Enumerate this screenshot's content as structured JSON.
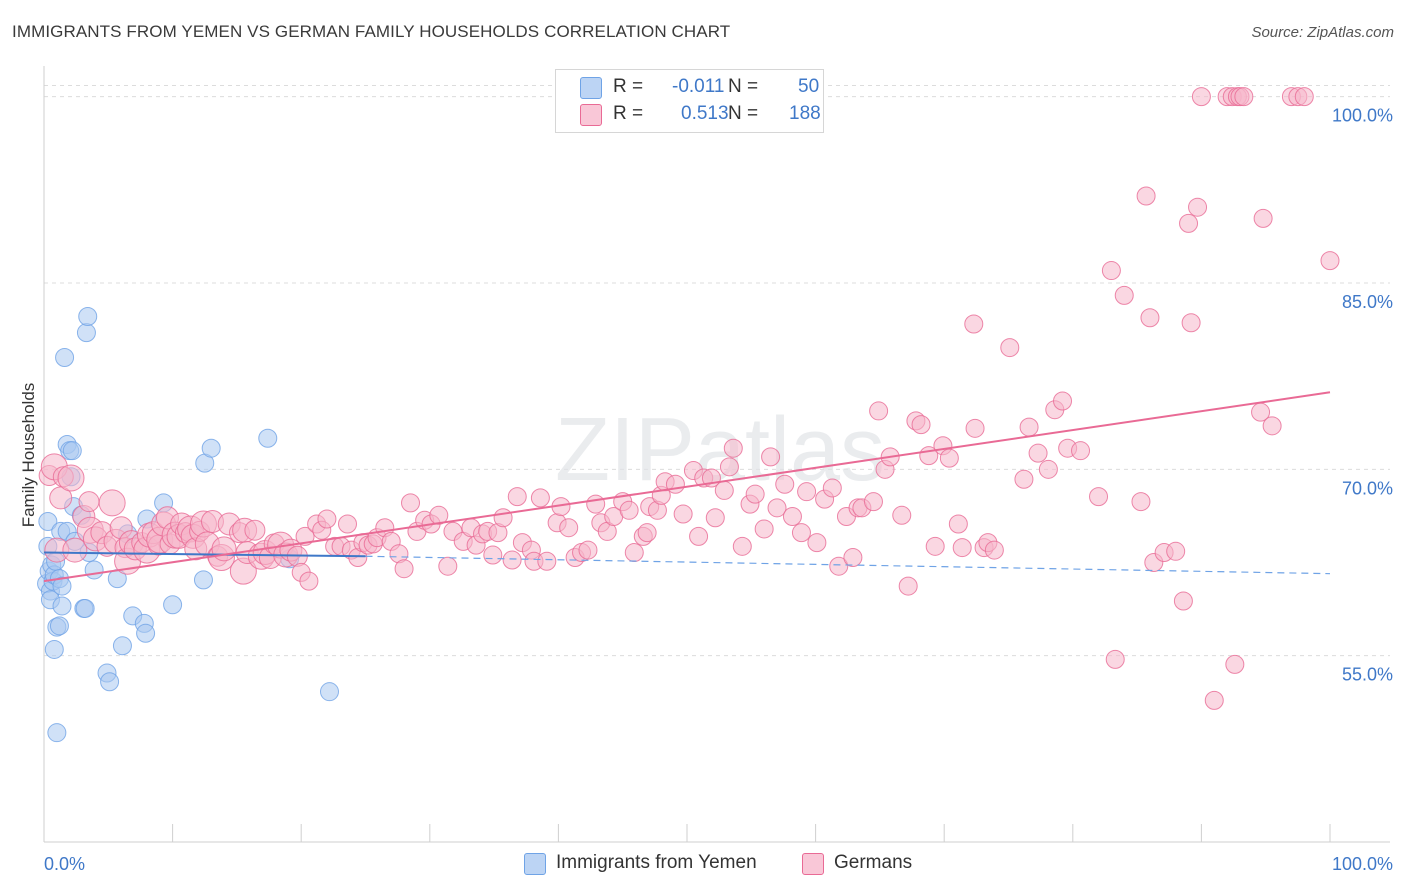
{
  "title": "IMMIGRANTS FROM YEMEN VS GERMAN FAMILY HOUSEHOLDS CORRELATION CHART",
  "source": "Source: ZipAtlas.com",
  "watermark": "ZIPatlas",
  "legend": {
    "r_label": "R =",
    "n_label": "N =",
    "rows": [
      {
        "r": "-0.011",
        "n": "50",
        "color": "#a9c8f0"
      },
      {
        "r": "0.513",
        "n": "188",
        "color": "#f6b6ca"
      }
    ]
  },
  "bottom_legend": [
    {
      "label": "Immigrants from Yemen",
      "color": "#a9c8f0"
    },
    {
      "label": "Germans",
      "color": "#f6b6ca"
    }
  ],
  "chart_data": {
    "type": "scatter",
    "title": "IMMIGRANTS FROM YEMEN VS GERMAN FAMILY HOUSEHOLDS CORRELATION CHART",
    "xlabel": "",
    "ylabel": "Family Households",
    "x_tick_labels": [
      "0.0%",
      "100.0%"
    ],
    "y_tick_labels": [
      "55.0%",
      "70.0%",
      "85.0%",
      "100.0%"
    ],
    "y_ticks": [
      55,
      70,
      85,
      100
    ],
    "xlim": [
      0,
      100
    ],
    "ylim": [
      40,
      101.5
    ],
    "grid": true,
    "legend_placement": "top-center",
    "series": [
      {
        "name": "Immigrants from Yemen",
        "color": "#6fa3e6",
        "fill": "#a9c8f0",
        "R": -0.011,
        "N": 50,
        "trend": {
          "x": [
            0,
            25
          ],
          "y": [
            63.3,
            63.0
          ],
          "dashed_to": [
            100,
            61.6
          ]
        },
        "points": [
          [
            0.2,
            60.8
          ],
          [
            0.3,
            65.8
          ],
          [
            0.3,
            63.8
          ],
          [
            0.4,
            61.8
          ],
          [
            0.5,
            60.2
          ],
          [
            0.5,
            59.5
          ],
          [
            0.6,
            62.3
          ],
          [
            0.7,
            61.0
          ],
          [
            0.8,
            61.5
          ],
          [
            0.8,
            55.5
          ],
          [
            0.9,
            62.6
          ],
          [
            1.0,
            57.3
          ],
          [
            1.0,
            48.8
          ],
          [
            1.2,
            57.4
          ],
          [
            1.2,
            61.2
          ],
          [
            1.3,
            65.0
          ],
          [
            1.4,
            60.6
          ],
          [
            1.4,
            59.0
          ],
          [
            1.6,
            79.0
          ],
          [
            1.8,
            72.0
          ],
          [
            1.8,
            65.0
          ],
          [
            2.0,
            71.5
          ],
          [
            2.1,
            69.4
          ],
          [
            2.2,
            71.5
          ],
          [
            2.3,
            67.0
          ],
          [
            2.4,
            64.2
          ],
          [
            2.9,
            66.3
          ],
          [
            3.1,
            58.8
          ],
          [
            3.2,
            58.8
          ],
          [
            3.3,
            81.0
          ],
          [
            3.4,
            82.3
          ],
          [
            3.5,
            63.3
          ],
          [
            3.9,
            61.9
          ],
          [
            4.9,
            53.6
          ],
          [
            5.1,
            52.9
          ],
          [
            5.7,
            61.2
          ],
          [
            6.1,
            55.8
          ],
          [
            6.5,
            64.8
          ],
          [
            6.9,
            58.2
          ],
          [
            7.8,
            57.6
          ],
          [
            7.9,
            56.8
          ],
          [
            8.0,
            66.0
          ],
          [
            9.3,
            67.3
          ],
          [
            10.0,
            59.1
          ],
          [
            12.4,
            61.1
          ],
          [
            12.5,
            70.5
          ],
          [
            13.0,
            71.7
          ],
          [
            17.4,
            72.5
          ],
          [
            19.1,
            62.8
          ],
          [
            22.2,
            52.1
          ]
        ]
      },
      {
        "name": "Germans",
        "color": "#e96a95",
        "fill": "#f6b6ca",
        "R": 0.513,
        "N": 188,
        "trend": {
          "x": [
            0,
            100
          ],
          "y": [
            61.0,
            76.2
          ]
        },
        "points": [
          [
            0.4,
            69.5
          ],
          [
            0.8,
            70.2
          ],
          [
            1.0,
            63.5
          ],
          [
            1.3,
            67.7
          ],
          [
            1.5,
            69.4
          ],
          [
            2.1,
            69.3
          ],
          [
            2.4,
            63.5
          ],
          [
            3.1,
            66.2
          ],
          [
            3.5,
            67.4
          ],
          [
            3.6,
            65.1
          ],
          [
            4.0,
            64.4
          ],
          [
            4.5,
            64.9
          ],
          [
            4.9,
            63.8
          ],
          [
            5.3,
            67.3
          ],
          [
            5.6,
            64.2
          ],
          [
            6.0,
            65.3
          ],
          [
            6.3,
            63.7
          ],
          [
            6.5,
            62.6
          ],
          [
            6.8,
            64.1
          ],
          [
            7.1,
            63.6
          ],
          [
            7.6,
            64.1
          ],
          [
            8.0,
            63.5
          ],
          [
            8.2,
            64.7
          ],
          [
            8.5,
            64.9
          ],
          [
            8.9,
            63.9
          ],
          [
            9.0,
            64.3
          ],
          [
            9.3,
            65.6
          ],
          [
            9.6,
            66.1
          ],
          [
            9.8,
            64.0
          ],
          [
            10.2,
            64.7
          ],
          [
            10.5,
            64.6
          ],
          [
            10.7,
            65.6
          ],
          [
            11.0,
            64.9
          ],
          [
            11.4,
            65.2
          ],
          [
            11.6,
            64.6
          ],
          [
            11.8,
            63.6
          ],
          [
            12.1,
            65.0
          ],
          [
            12.4,
            65.6
          ],
          [
            12.7,
            64.0
          ],
          [
            13.1,
            65.8
          ],
          [
            13.5,
            63.0
          ],
          [
            13.8,
            62.9
          ],
          [
            14.0,
            63.6
          ],
          [
            14.4,
            65.6
          ],
          [
            15.2,
            64.9
          ],
          [
            15.5,
            61.8
          ],
          [
            15.6,
            65.1
          ],
          [
            15.8,
            63.3
          ],
          [
            16.4,
            65.1
          ],
          [
            16.9,
            63.0
          ],
          [
            17.2,
            63.3
          ],
          [
            17.6,
            62.9
          ],
          [
            17.9,
            64.0
          ],
          [
            18.4,
            63.9
          ],
          [
            18.8,
            63.1
          ],
          [
            19.2,
            63.5
          ],
          [
            19.7,
            63.0
          ],
          [
            20.0,
            61.7
          ],
          [
            20.3,
            64.6
          ],
          [
            20.6,
            61.0
          ],
          [
            21.2,
            65.6
          ],
          [
            21.6,
            65.1
          ],
          [
            22.0,
            66.0
          ],
          [
            22.6,
            63.8
          ],
          [
            23.1,
            63.8
          ],
          [
            23.6,
            65.6
          ],
          [
            23.9,
            63.5
          ],
          [
            24.4,
            62.9
          ],
          [
            24.8,
            64.1
          ],
          [
            25.2,
            63.9
          ],
          [
            25.6,
            64.0
          ],
          [
            25.9,
            64.5
          ],
          [
            26.5,
            65.3
          ],
          [
            27.0,
            64.2
          ],
          [
            27.6,
            63.2
          ],
          [
            28.0,
            62.0
          ],
          [
            28.5,
            67.3
          ],
          [
            29.0,
            65.0
          ],
          [
            29.6,
            65.9
          ],
          [
            30.1,
            65.6
          ],
          [
            30.7,
            66.3
          ],
          [
            31.4,
            62.2
          ],
          [
            31.8,
            65.0
          ],
          [
            32.6,
            64.2
          ],
          [
            33.2,
            65.3
          ],
          [
            33.6,
            63.9
          ],
          [
            34.1,
            64.8
          ],
          [
            34.5,
            65.0
          ],
          [
            34.9,
            63.1
          ],
          [
            35.3,
            64.9
          ],
          [
            35.7,
            66.1
          ],
          [
            36.4,
            62.7
          ],
          [
            36.8,
            67.8
          ],
          [
            37.2,
            64.1
          ],
          [
            37.9,
            63.5
          ],
          [
            38.1,
            62.6
          ],
          [
            38.6,
            67.7
          ],
          [
            39.1,
            62.6
          ],
          [
            39.9,
            65.7
          ],
          [
            40.2,
            67.0
          ],
          [
            40.8,
            65.3
          ],
          [
            41.3,
            62.9
          ],
          [
            41.8,
            63.3
          ],
          [
            42.3,
            63.5
          ],
          [
            42.9,
            67.2
          ],
          [
            43.3,
            65.7
          ],
          [
            43.8,
            65.0
          ],
          [
            44.3,
            66.2
          ],
          [
            45.0,
            67.4
          ],
          [
            45.5,
            66.7
          ],
          [
            45.9,
            63.3
          ],
          [
            46.6,
            64.6
          ],
          [
            46.9,
            64.9
          ],
          [
            47.1,
            67.0
          ],
          [
            47.7,
            66.7
          ],
          [
            48.0,
            67.9
          ],
          [
            48.3,
            69.0
          ],
          [
            49.1,
            68.8
          ],
          [
            49.7,
            66.4
          ],
          [
            50.5,
            69.9
          ],
          [
            50.9,
            64.6
          ],
          [
            51.3,
            69.3
          ],
          [
            51.9,
            69.3
          ],
          [
            52.2,
            66.1
          ],
          [
            52.9,
            68.3
          ],
          [
            53.3,
            70.2
          ],
          [
            53.6,
            71.7
          ],
          [
            54.3,
            63.8
          ],
          [
            54.9,
            67.2
          ],
          [
            55.3,
            68.0
          ],
          [
            56.0,
            65.2
          ],
          [
            56.5,
            71.0
          ],
          [
            57.0,
            66.9
          ],
          [
            57.6,
            68.8
          ],
          [
            58.2,
            66.2
          ],
          [
            58.9,
            64.9
          ],
          [
            59.3,
            68.2
          ],
          [
            60.1,
            64.1
          ],
          [
            60.7,
            67.6
          ],
          [
            61.3,
            68.5
          ],
          [
            61.8,
            62.2
          ],
          [
            62.4,
            66.2
          ],
          [
            62.9,
            62.9
          ],
          [
            63.3,
            66.9
          ],
          [
            63.6,
            66.9
          ],
          [
            64.5,
            67.4
          ],
          [
            64.9,
            74.7
          ],
          [
            65.4,
            70.0
          ],
          [
            65.8,
            71.0
          ],
          [
            66.7,
            66.3
          ],
          [
            67.2,
            60.6
          ],
          [
            67.8,
            73.9
          ],
          [
            68.2,
            73.6
          ],
          [
            68.8,
            71.1
          ],
          [
            69.3,
            63.8
          ],
          [
            69.9,
            71.9
          ],
          [
            70.4,
            70.9
          ],
          [
            71.1,
            65.6
          ],
          [
            71.4,
            63.7
          ],
          [
            72.3,
            81.7
          ],
          [
            72.4,
            73.3
          ],
          [
            73.1,
            63.7
          ],
          [
            73.4,
            64.1
          ],
          [
            73.9,
            63.5
          ],
          [
            75.1,
            79.8
          ],
          [
            76.2,
            69.2
          ],
          [
            76.6,
            73.4
          ],
          [
            77.3,
            71.3
          ],
          [
            78.1,
            70.0
          ],
          [
            78.6,
            74.8
          ],
          [
            79.2,
            75.5
          ],
          [
            79.6,
            71.7
          ],
          [
            80.6,
            71.5
          ],
          [
            82.0,
            67.8
          ],
          [
            83.0,
            86.0
          ],
          [
            83.3,
            54.7
          ],
          [
            84.0,
            84.0
          ],
          [
            85.3,
            67.4
          ],
          [
            85.7,
            92.0
          ],
          [
            86.0,
            82.2
          ],
          [
            86.3,
            62.5
          ],
          [
            87.1,
            63.3
          ],
          [
            88.0,
            63.4
          ],
          [
            88.6,
            59.4
          ],
          [
            89.0,
            89.8
          ],
          [
            89.2,
            81.8
          ],
          [
            89.7,
            91.1
          ],
          [
            90.0,
            100.0
          ],
          [
            91.0,
            51.4
          ],
          [
            92.0,
            100.0
          ],
          [
            92.4,
            100.0
          ],
          [
            92.6,
            54.3
          ],
          [
            92.8,
            100.0
          ],
          [
            93.0,
            100.0
          ],
          [
            93.3,
            100.0
          ],
          [
            94.6,
            74.6
          ],
          [
            94.8,
            90.2
          ],
          [
            95.5,
            73.5
          ],
          [
            97.0,
            100.0
          ],
          [
            97.5,
            100.0
          ],
          [
            98.0,
            100.0
          ],
          [
            100.0,
            86.8
          ]
        ]
      }
    ]
  }
}
